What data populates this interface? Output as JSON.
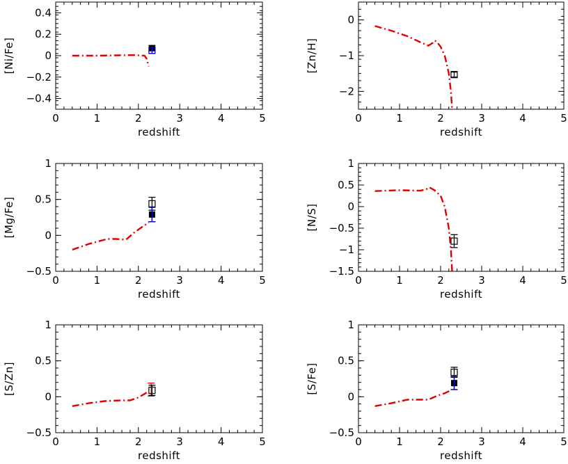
{
  "figure": {
    "description_free": true
  },
  "chart_data": [
    {
      "id": "ni-fe",
      "type": "line",
      "xlabel": "redshift",
      "ylabel": "[Ni/Fe]",
      "xlim": [
        0,
        5
      ],
      "ylim": [
        -0.5,
        0.5
      ],
      "xticks": [
        0,
        1,
        2,
        3,
        4,
        5
      ],
      "yticks": [
        -0.4,
        -0.2,
        0,
        0.2,
        0.4
      ],
      "ytick_labels": [
        "−0.4",
        "−0.2",
        "0",
        "0.2",
        "0.4"
      ],
      "model": {
        "name": "model",
        "color": "#e00000",
        "x": [
          0.4,
          1.0,
          1.5,
          1.9,
          2.15,
          2.2,
          2.25
        ],
        "y": [
          0.0,
          0.0,
          0.003,
          0.005,
          0.0,
          -0.03,
          -0.1
        ]
      },
      "observations": [
        {
          "marker": "filled",
          "x": 2.33,
          "y": 0.07,
          "err": 0.025,
          "color": "#000000"
        },
        {
          "marker": "open",
          "x": 2.33,
          "y": 0.05,
          "err": 0.03,
          "color": "#0000cc"
        }
      ]
    },
    {
      "id": "zn-h",
      "type": "line",
      "xlabel": "redshift",
      "ylabel": "[Zn/H]",
      "xlim": [
        0,
        5
      ],
      "ylim": [
        -2.5,
        0.5
      ],
      "xticks": [
        0,
        1,
        2,
        3,
        4,
        5
      ],
      "yticks": [
        -2,
        -1,
        0
      ],
      "ytick_labels": [
        "−2",
        "−1",
        "0"
      ],
      "model": {
        "name": "model",
        "color": "#e00000",
        "x": [
          0.4,
          0.8,
          1.2,
          1.5,
          1.7,
          1.8,
          1.85,
          1.9,
          2.0,
          2.1,
          2.2,
          2.25,
          2.28
        ],
        "y": [
          -0.17,
          -0.3,
          -0.46,
          -0.62,
          -0.72,
          -0.65,
          -0.58,
          -0.6,
          -0.75,
          -1.0,
          -1.5,
          -2.0,
          -2.5
        ]
      },
      "observations": [
        {
          "marker": "open",
          "x": 2.33,
          "y": -1.53,
          "err": 0.07,
          "color": "#000000"
        }
      ]
    },
    {
      "id": "mg-fe",
      "type": "line",
      "xlabel": "redshift",
      "ylabel": "[Mg/Fe]",
      "xlim": [
        0,
        5
      ],
      "ylim": [
        -0.5,
        1
      ],
      "xticks": [
        0,
        1,
        2,
        3,
        4,
        5
      ],
      "yticks": [
        -0.5,
        0,
        0.5,
        1
      ],
      "ytick_labels": [
        "−0.5",
        "0",
        "0.5",
        "1"
      ],
      "model": {
        "name": "model",
        "color": "#e00000",
        "x": [
          0.4,
          0.8,
          1.25,
          1.45,
          1.7,
          1.9,
          2.1,
          2.25
        ],
        "y": [
          -0.2,
          -0.12,
          -0.05,
          -0.05,
          -0.06,
          0.04,
          0.12,
          0.18
        ]
      },
      "observations": [
        {
          "marker": "open",
          "x": 2.33,
          "y": 0.44,
          "err": 0.09,
          "color": "#000000"
        },
        {
          "marker": "filled",
          "x": 2.33,
          "y": 0.29,
          "err": 0.1,
          "color": "#000000"
        },
        {
          "marker": "bar",
          "x": 2.33,
          "y": 0.29,
          "err": 0.1,
          "color": "#0000cc"
        }
      ]
    },
    {
      "id": "n-s",
      "type": "line",
      "xlabel": "redshift",
      "ylabel": "[N/S]",
      "xlim": [
        0,
        5
      ],
      "ylim": [
        -1.5,
        1
      ],
      "xticks": [
        0,
        1,
        2,
        3,
        4,
        5
      ],
      "yticks": [
        -1.5,
        -1,
        -0.5,
        0,
        0.5,
        1
      ],
      "ytick_labels": [
        "−1.5",
        "−1",
        "−0.5",
        "0",
        "0.5",
        "1"
      ],
      "model": {
        "name": "model",
        "color": "#e00000",
        "x": [
          0.4,
          1.0,
          1.5,
          1.65,
          1.72,
          1.85,
          2.0,
          2.1,
          2.2,
          2.25,
          2.28
        ],
        "y": [
          0.36,
          0.38,
          0.37,
          0.4,
          0.45,
          0.38,
          0.25,
          0.0,
          -0.5,
          -1.0,
          -1.5
        ]
      },
      "observations": [
        {
          "marker": "open",
          "x": 2.33,
          "y": -0.8,
          "err": 0.15,
          "color": "#000000"
        }
      ]
    },
    {
      "id": "s-zn",
      "type": "line",
      "xlabel": "redshift",
      "ylabel": "[S/Zn]",
      "xlim": [
        0,
        5
      ],
      "ylim": [
        -0.5,
        1
      ],
      "xticks": [
        0,
        1,
        2,
        3,
        4,
        5
      ],
      "yticks": [
        -0.5,
        0,
        0.5,
        1
      ],
      "ytick_labels": [
        "−0.5",
        "0",
        "0.5",
        "1"
      ],
      "model": {
        "name": "model",
        "color": "#e00000",
        "x": [
          0.4,
          0.8,
          1.2,
          1.6,
          1.8,
          2.0,
          2.15,
          2.25
        ],
        "y": [
          -0.13,
          -0.09,
          -0.06,
          -0.05,
          -0.05,
          -0.01,
          0.04,
          0.08
        ]
      },
      "observations": [
        {
          "marker": "bar",
          "x": 2.31,
          "y": 0.1,
          "err": 0.09,
          "color": "#e00000"
        },
        {
          "marker": "open",
          "x": 2.33,
          "y": 0.09,
          "err": 0.07,
          "color": "#000000"
        }
      ]
    },
    {
      "id": "s-fe",
      "type": "line",
      "xlabel": "redshift",
      "ylabel": "[S/Fe]",
      "xlim": [
        0,
        5
      ],
      "ylim": [
        -0.5,
        1
      ],
      "xticks": [
        0,
        1,
        2,
        3,
        4,
        5
      ],
      "yticks": [
        -0.5,
        0,
        0.5,
        1
      ],
      "ytick_labels": [
        "−0.5",
        "0",
        "0.5",
        "1"
      ],
      "model": {
        "name": "model",
        "color": "#e00000",
        "x": [
          0.4,
          0.8,
          1.2,
          1.5,
          1.7,
          1.9,
          2.1,
          2.25
        ],
        "y": [
          -0.13,
          -0.09,
          -0.04,
          -0.04,
          -0.04,
          0.01,
          0.05,
          0.09
        ]
      },
      "observations": [
        {
          "marker": "open",
          "x": 2.33,
          "y": 0.34,
          "err": 0.07,
          "color": "#000000"
        },
        {
          "marker": "filled",
          "x": 2.33,
          "y": 0.19,
          "err": 0.09,
          "color": "#000000"
        },
        {
          "marker": "bar",
          "x": 2.33,
          "y": 0.19,
          "err": 0.09,
          "color": "#0000cc"
        }
      ]
    }
  ]
}
